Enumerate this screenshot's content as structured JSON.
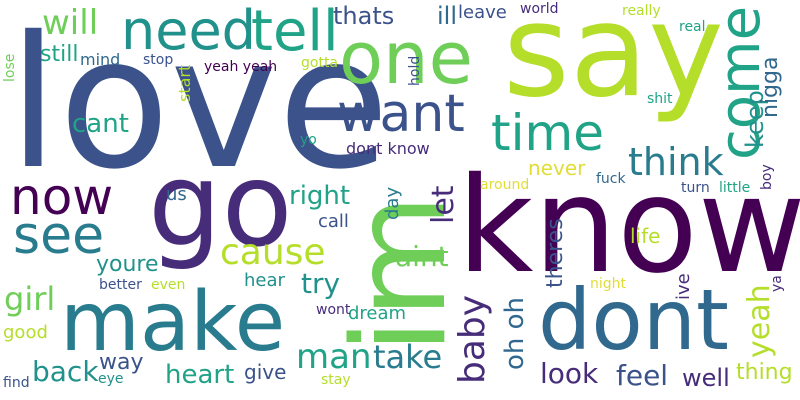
{
  "words": {
    "love": "love",
    "say": "say",
    "know": "know",
    "im": "im",
    "go": "go",
    "make": "make",
    "dont": "dont",
    "one": "one",
    "now": "now",
    "need": "need",
    "tell": "tell",
    "time": "time",
    "come": "come",
    "want": "want",
    "see": "see",
    "think": "think",
    "cause": "cause",
    "will": "will",
    "thats": "thats",
    "ill": "ill",
    "leave": "leave",
    "world": "world",
    "really": "really",
    "real": "real",
    "still": "still",
    "mind": "mind",
    "stop": "stop",
    "gotta": "gotta",
    "yeah_yeah": "yeah yeah",
    "lose": "lose",
    "start": "start",
    "hold": "hold",
    "cant": "cant",
    "keep": "keep",
    "nigga": "nigga",
    "shit": "shit",
    "yo": "yo",
    "dont_know": "dont know",
    "never": "never",
    "fuck": "fuck",
    "around": "around",
    "boy": "boy",
    "turn": "turn",
    "little": "little",
    "us": "us",
    "right": "right",
    "call": "call",
    "day": "day",
    "let": "let",
    "life": "life",
    "aint": "aint",
    "youre": "youre",
    "theres": "theres",
    "try": "try",
    "hear": "hear",
    "girl": "girl",
    "better": "better",
    "even": "even",
    "night": "night",
    "ive": "ive",
    "ya": "ya",
    "baby": "baby",
    "good": "good",
    "wont": "wont",
    "dream": "dream",
    "oh_oh": "oh oh",
    "yeah": "yeah",
    "way": "way",
    "man": "man",
    "take": "take",
    "back": "back",
    "give": "give",
    "heart": "heart",
    "look": "look",
    "feel": "feel",
    "well": "well",
    "thing": "thing",
    "find": "find",
    "eye": "eye",
    "stay": "stay"
  },
  "colors": {
    "dark_purple": "#440154",
    "indigo": "#472c7a",
    "slate_blue": "#3b528b",
    "blue": "#31688e",
    "teal_blue": "#287c8e",
    "teal": "#21918c",
    "sea_green": "#20a386",
    "green": "#35b779",
    "light_green": "#6ece58",
    "lime": "#b5de2b",
    "yellow": "#e1dd37"
  }
}
